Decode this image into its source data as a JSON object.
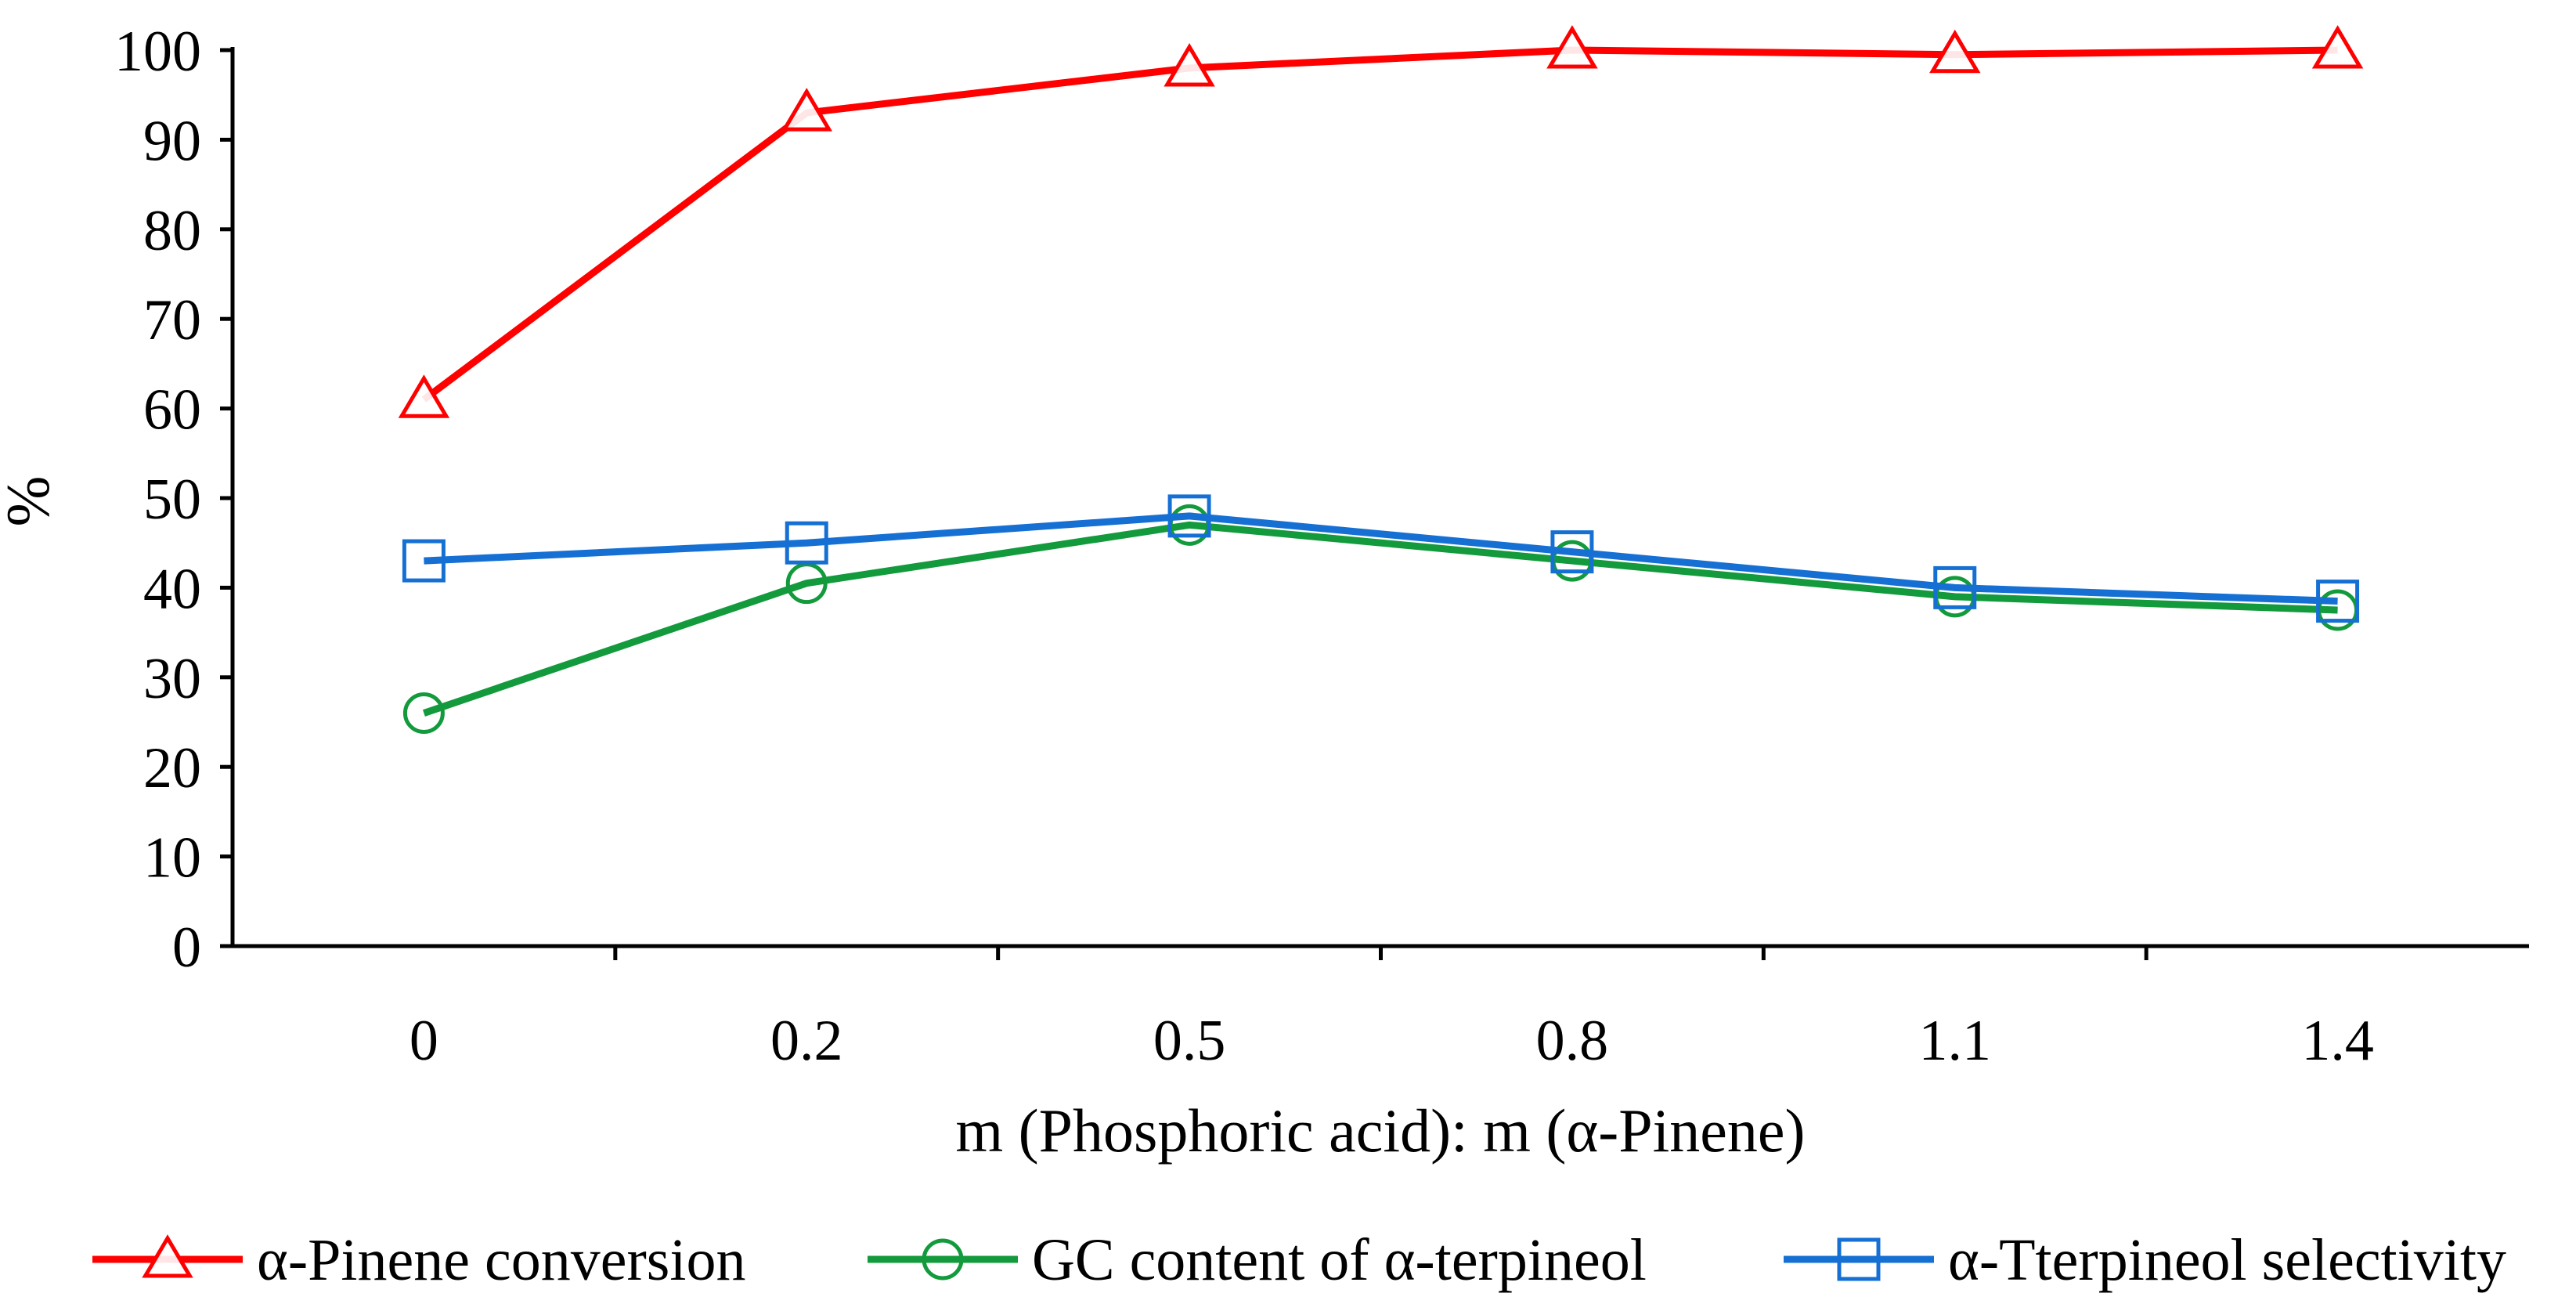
{
  "chart_data": {
    "type": "line",
    "title": "",
    "xlabel": "m (Phosphoric acid): m (α-Pinene)",
    "ylabel": "%",
    "categories": [
      "0",
      "0.2",
      "0.5",
      "0.8",
      "1.1",
      "1.4"
    ],
    "ylim": [
      0,
      100
    ],
    "yticks": [
      "0",
      "10",
      "20",
      "30",
      "40",
      "50",
      "60",
      "70",
      "80",
      "90",
      "100"
    ],
    "grid": false,
    "legend_position": "bottom",
    "series": [
      {
        "name": "α-Pinene conversion",
        "marker": "triangle",
        "color": "#ff0000",
        "values": [
          61,
          93,
          98,
          100,
          99.5,
          100
        ]
      },
      {
        "name": "GC content of α-terpineol",
        "marker": "circle",
        "color": "#139a3c",
        "values": [
          26,
          40.5,
          47,
          43,
          39,
          37.5
        ]
      },
      {
        "name": "α-Tterpineol selectivity",
        "marker": "square",
        "color": "#1670d4",
        "values": [
          43,
          45,
          48,
          44,
          40,
          38.5
        ]
      }
    ]
  }
}
